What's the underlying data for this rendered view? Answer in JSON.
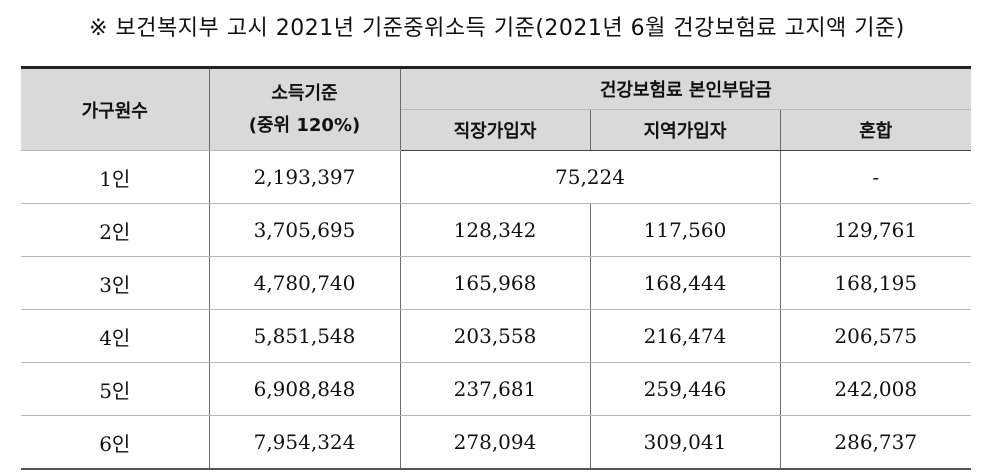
{
  "title": "※ 보건복지부 고시 2021년 기준중위소득 기준(2021년 6월 건강보험료 고지액 기준)",
  "table": {
    "headers": {
      "household": "가구원수",
      "income_line1": "소득기준",
      "income_line2": "(중위 120%)",
      "premium_group": "건강보험료 본인부담금",
      "employee": "직장가입자",
      "regional": "지역가입자",
      "mixed": "혼합"
    },
    "row1": {
      "household": "1인",
      "income": "2,193,397",
      "premium_merged": "75,224",
      "mixed": "-"
    },
    "rows": [
      {
        "household": "2인",
        "income": "3,705,695",
        "employee": "128,342",
        "regional": "117,560",
        "mixed": "129,761"
      },
      {
        "household": "3인",
        "income": "4,780,740",
        "employee": "165,968",
        "regional": "168,444",
        "mixed": "168,195"
      },
      {
        "household": "4인",
        "income": "5,851,548",
        "employee": "203,558",
        "regional": "216,474",
        "mixed": "206,575"
      },
      {
        "household": "5인",
        "income": "6,908,848",
        "employee": "237,681",
        "regional": "259,446",
        "mixed": "242,008"
      },
      {
        "household": "6인",
        "income": "7,954,324",
        "employee": "278,094",
        "regional": "309,041",
        "mixed": "286,737"
      }
    ]
  }
}
